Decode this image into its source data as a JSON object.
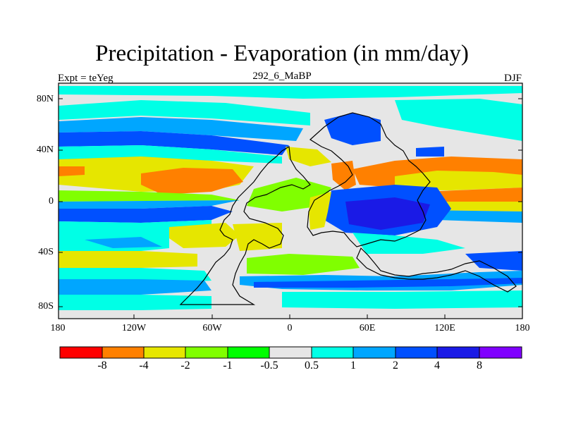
{
  "map": {
    "title": "Precipitation - Evaporation (in mm/day)",
    "left_subtitle": "Expt = teYeg",
    "center_subtitle": "292_6_MaBP",
    "right_subtitle": "DJF",
    "lat_labels": [
      "80N",
      "40N",
      "0",
      "40S",
      "80S"
    ],
    "lon_labels": [
      "180",
      "120W",
      "60W",
      "0",
      "60E",
      "120E",
      "180"
    ]
  },
  "colorbar": {
    "labels": [
      "-8",
      "-4",
      "-2",
      "-1",
      "-0.5",
      "0.5",
      "1",
      "2",
      "4",
      "8"
    ],
    "colors": [
      "#ff0000",
      "#ff8000",
      "#e6e600",
      "#80ff00",
      "#00ff00",
      "#e6e6e6",
      "#00ffe6",
      "#00a6ff",
      "#0050ff",
      "#1a1ae6",
      "#8000ff"
    ]
  },
  "palette": {
    "land_bg": "#e6e6e6",
    "coast": "#000000"
  }
}
